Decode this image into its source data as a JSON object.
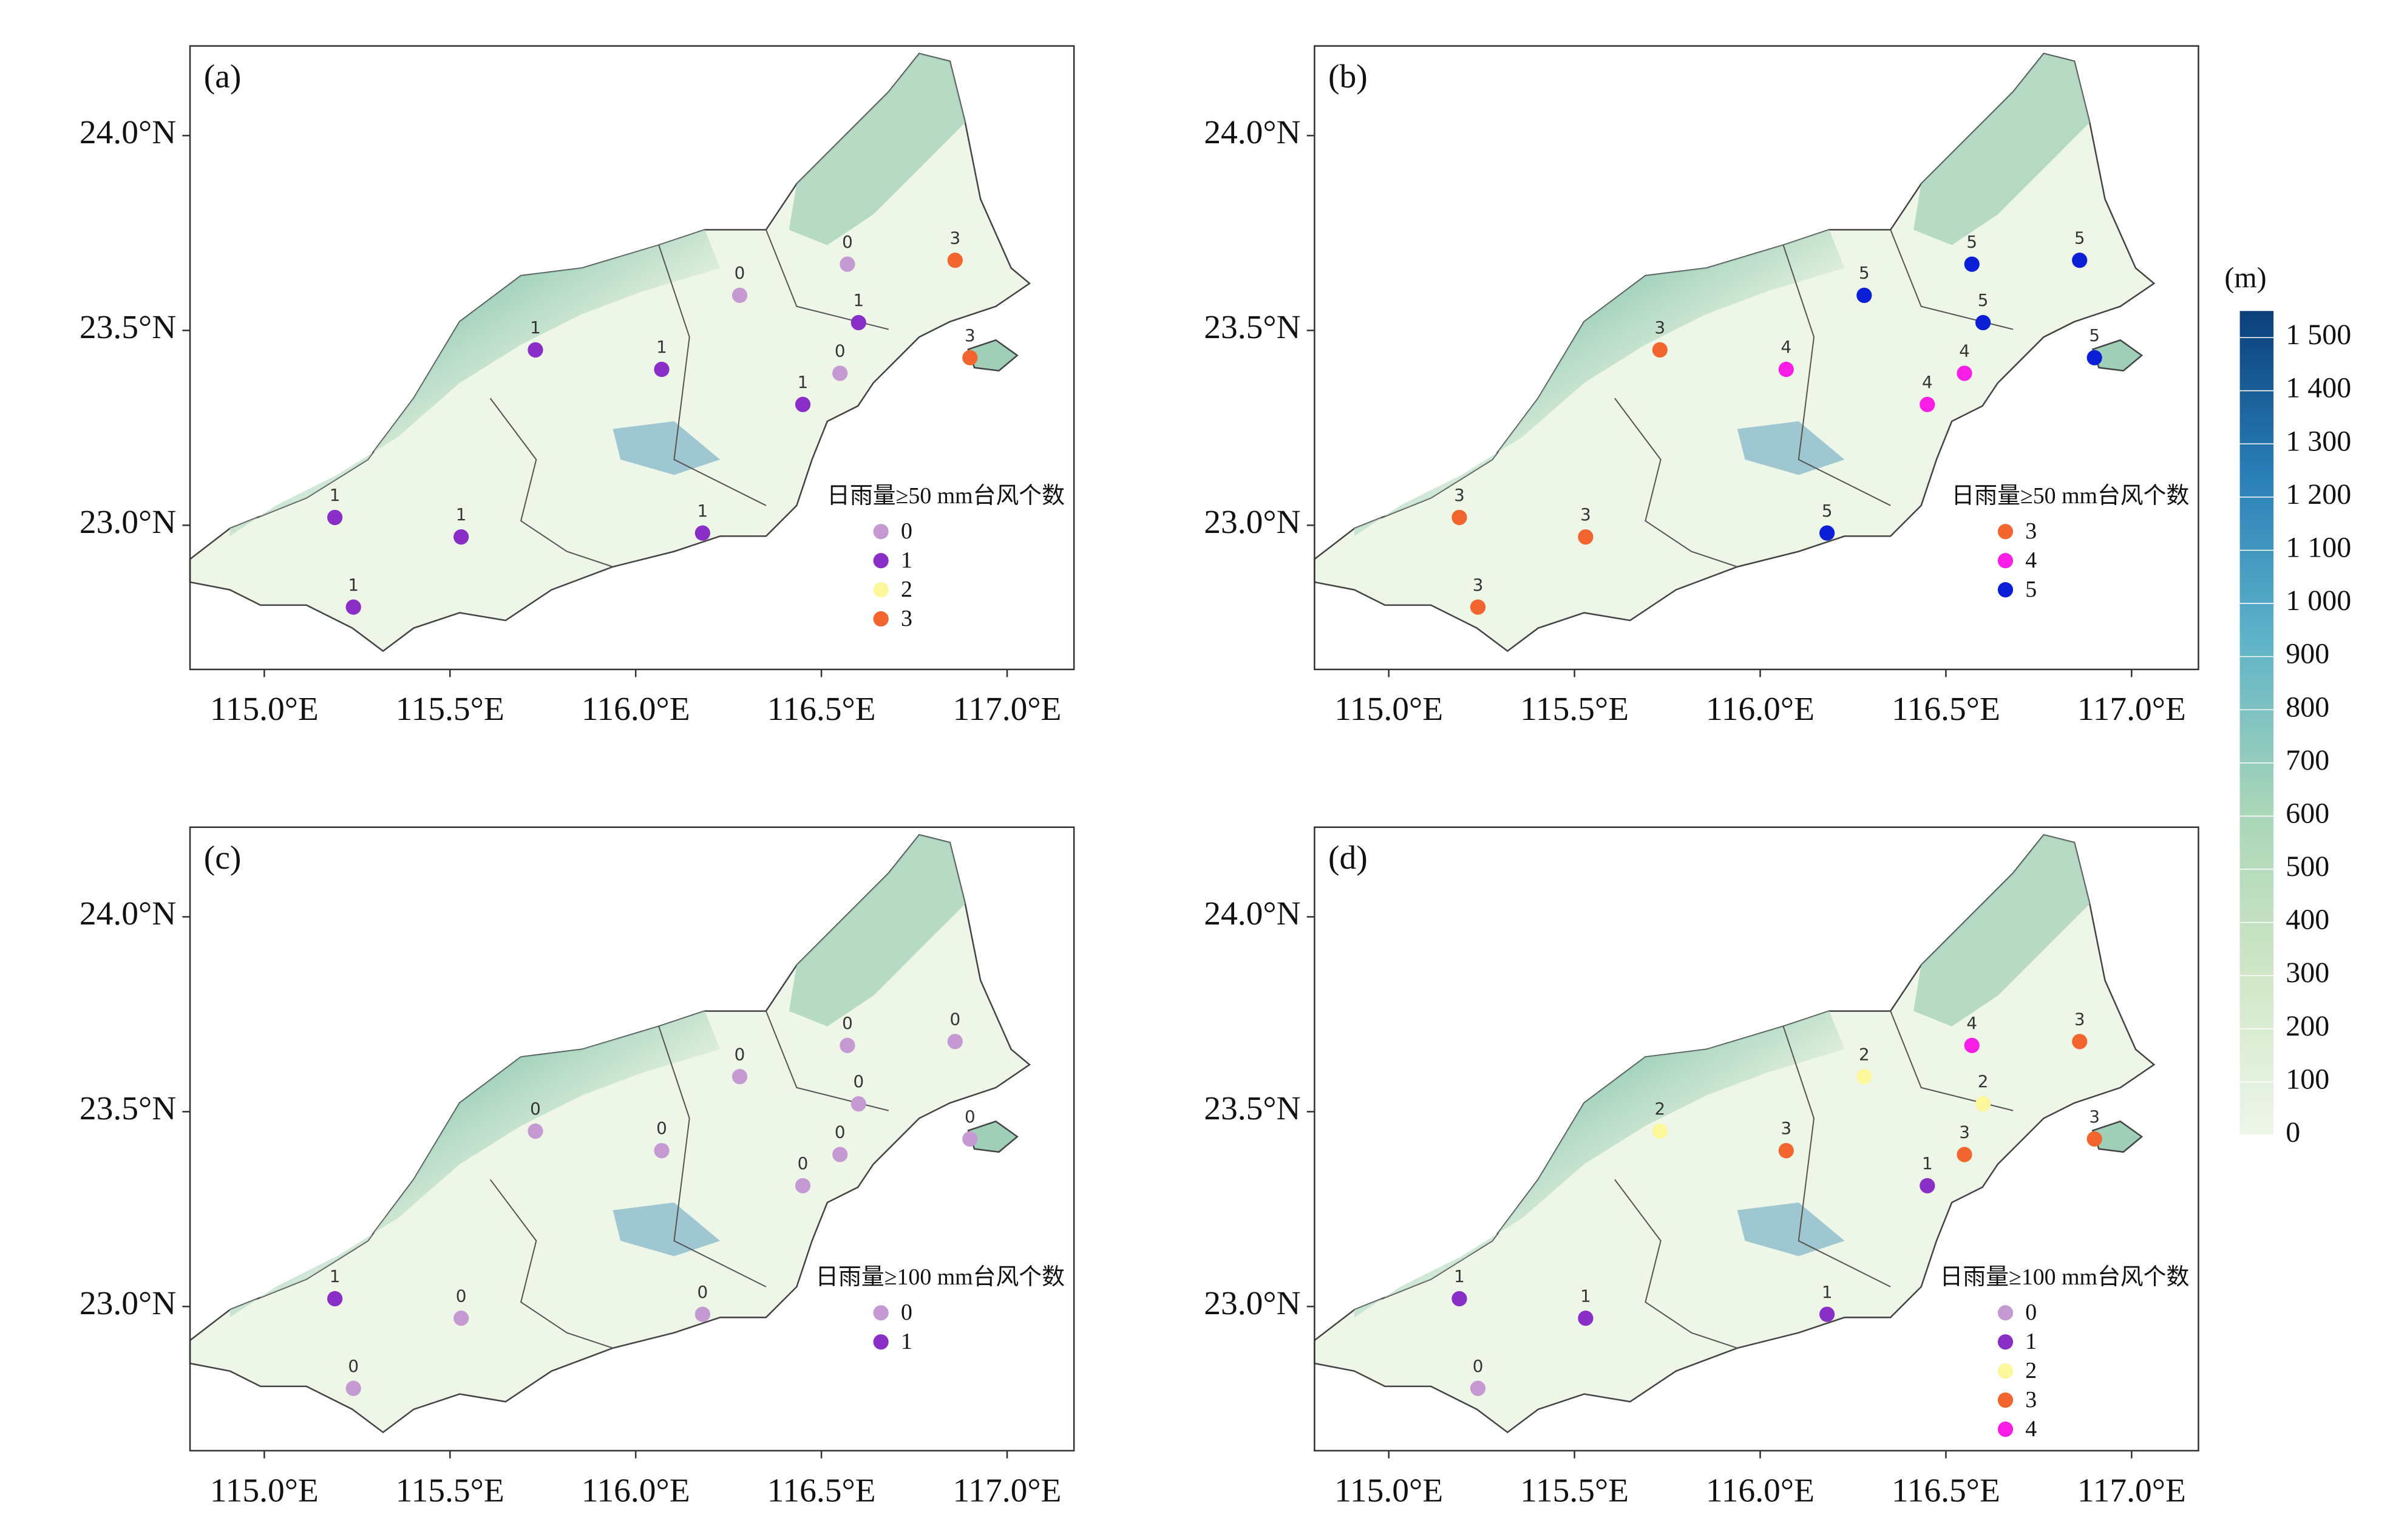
{
  "xlim": [
    114.8,
    117.18
  ],
  "ylim": [
    22.63,
    24.23
  ],
  "xticks": [
    {
      "value": 115.0,
      "label": "115.0°E"
    },
    {
      "value": 115.5,
      "label": "115.5°E"
    },
    {
      "value": 116.0,
      "label": "116.0°E"
    },
    {
      "value": 116.5,
      "label": "116.5°E"
    },
    {
      "value": 117.0,
      "label": "117.0°E"
    }
  ],
  "yticks": [
    {
      "value": 23.0,
      "label": "23.0°N"
    },
    {
      "value": 23.5,
      "label": "23.5°N"
    },
    {
      "value": 24.0,
      "label": "24.0°N"
    }
  ],
  "stations": [
    {
      "lon": 115.19,
      "lat": 23.02
    },
    {
      "lon": 115.24,
      "lat": 22.79
    },
    {
      "lon": 115.53,
      "lat": 22.97
    },
    {
      "lon": 115.73,
      "lat": 23.45
    },
    {
      "lon": 116.07,
      "lat": 23.4
    },
    {
      "lon": 116.28,
      "lat": 23.59
    },
    {
      "lon": 116.18,
      "lat": 22.98
    },
    {
      "lon": 116.45,
      "lat": 23.31
    },
    {
      "lon": 116.55,
      "lat": 23.39
    },
    {
      "lon": 116.6,
      "lat": 23.52
    },
    {
      "lon": 116.57,
      "lat": 23.67
    },
    {
      "lon": 116.86,
      "lat": 23.68
    },
    {
      "lon": 116.9,
      "lat": 23.43
    }
  ],
  "panels": [
    {
      "label": "(a)",
      "legend_title": "日雨量≥50 mm台风个数",
      "legend": [
        {
          "value": 0,
          "color": "#c59ad3"
        },
        {
          "value": 1,
          "color": "#8a2ec8"
        },
        {
          "value": 2,
          "color": "#fbf79a"
        },
        {
          "value": 3,
          "color": "#f2652e"
        }
      ],
      "values": [
        1,
        1,
        1,
        1,
        1,
        0,
        1,
        1,
        0,
        1,
        0,
        3,
        3
      ]
    },
    {
      "label": "(b)",
      "legend_title": "日雨量≥50 mm台风个数",
      "legend": [
        {
          "value": 3,
          "color": "#f2652e"
        },
        {
          "value": 4,
          "color": "#f81ee6"
        },
        {
          "value": 5,
          "color": "#0a1fd6"
        }
      ],
      "values": [
        3,
        3,
        3,
        3,
        4,
        5,
        5,
        4,
        4,
        5,
        5,
        5,
        5
      ]
    },
    {
      "label": "(c)",
      "legend_title": "日雨量≥100 mm台风个数",
      "legend": [
        {
          "value": 0,
          "color": "#c59ad3"
        },
        {
          "value": 1,
          "color": "#8a2ec8"
        }
      ],
      "values": [
        1,
        0,
        0,
        0,
        0,
        0,
        0,
        0,
        0,
        0,
        0,
        0,
        0
      ]
    },
    {
      "label": "(d)",
      "legend_title": "日雨量≥100 mm台风个数",
      "legend": [
        {
          "value": 0,
          "color": "#c59ad3"
        },
        {
          "value": 1,
          "color": "#8a2ec8"
        },
        {
          "value": 2,
          "color": "#fbf79a"
        },
        {
          "value": 3,
          "color": "#f2652e"
        },
        {
          "value": 4,
          "color": "#f81ee6"
        }
      ],
      "values": [
        1,
        0,
        1,
        2,
        3,
        2,
        1,
        1,
        3,
        2,
        4,
        3,
        3
      ]
    }
  ],
  "colorbar": {
    "unit": "(m)",
    "lim": [
      0,
      1550
    ],
    "ticks": [
      0,
      100,
      200,
      300,
      400,
      500,
      600,
      700,
      800,
      900,
      {
        "value": 1000,
        "label": "1 000"
      },
      {
        "value": 1100,
        "label": "1 100"
      },
      {
        "value": 1200,
        "label": "1 200"
      },
      {
        "value": 1300,
        "label": "1 300"
      },
      {
        "value": 1400,
        "label": "1 400"
      },
      {
        "value": 1500,
        "label": "1 500"
      }
    ],
    "colors": [
      "#eef6ea",
      "#cfe6c6",
      "#a8d5b8",
      "#5fb3c9",
      "#2a7fb8",
      "#0b3f7a"
    ]
  }
}
